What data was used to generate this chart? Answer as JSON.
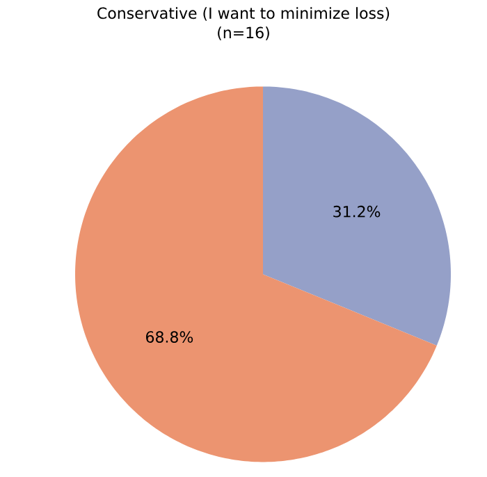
{
  "chart_data": {
    "type": "pie",
    "title": "Conservative (I want to minimize loss)",
    "subtitle": "(n=16)",
    "categories": [
      null,
      null
    ],
    "values": [
      31.2,
      68.8
    ],
    "colors": [
      "#95a0c8",
      "#ec9470"
    ],
    "value_labels": [
      "31.2%",
      "68.8%"
    ]
  }
}
